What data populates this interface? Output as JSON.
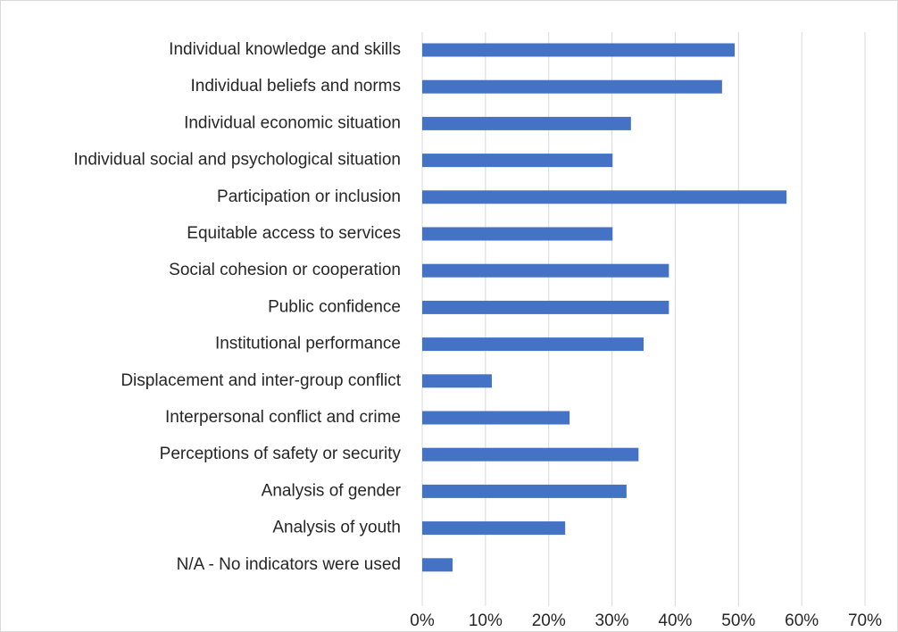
{
  "colors": {
    "bar": "#4472c4",
    "grid": "#d9d9d9",
    "text": "#262626",
    "border": "#d9d9d9"
  },
  "chart_data": {
    "type": "bar",
    "orientation": "horizontal",
    "title": "",
    "xlabel": "",
    "ylabel": "",
    "xlim": [
      0,
      0.7
    ],
    "grid": true,
    "legend": "none",
    "categories": [
      "Individual knowledge and skills",
      "Individual beliefs and norms",
      "Individual economic situation",
      "Individual social and psychological situation",
      "Participation or inclusion",
      "Equitable access to services",
      "Social cohesion or cooperation",
      "Public confidence",
      "Institutional performance",
      "Displacement and inter-group conflict",
      "Interpersonal conflict and crime",
      "Perceptions of safety or security",
      "Analysis of gender",
      "Analysis of youth",
      "N/A - No indicators were used"
    ],
    "values": [
      0.494,
      0.474,
      0.33,
      0.301,
      0.576,
      0.301,
      0.39,
      0.39,
      0.35,
      0.11,
      0.233,
      0.342,
      0.323,
      0.226,
      0.048
    ],
    "ticks": [
      0,
      0.1,
      0.2,
      0.3,
      0.4,
      0.5,
      0.6,
      0.7
    ],
    "tick_labels": [
      "0%",
      "10%",
      "20%",
      "30%",
      "40%",
      "50%",
      "60%",
      "70%"
    ]
  }
}
